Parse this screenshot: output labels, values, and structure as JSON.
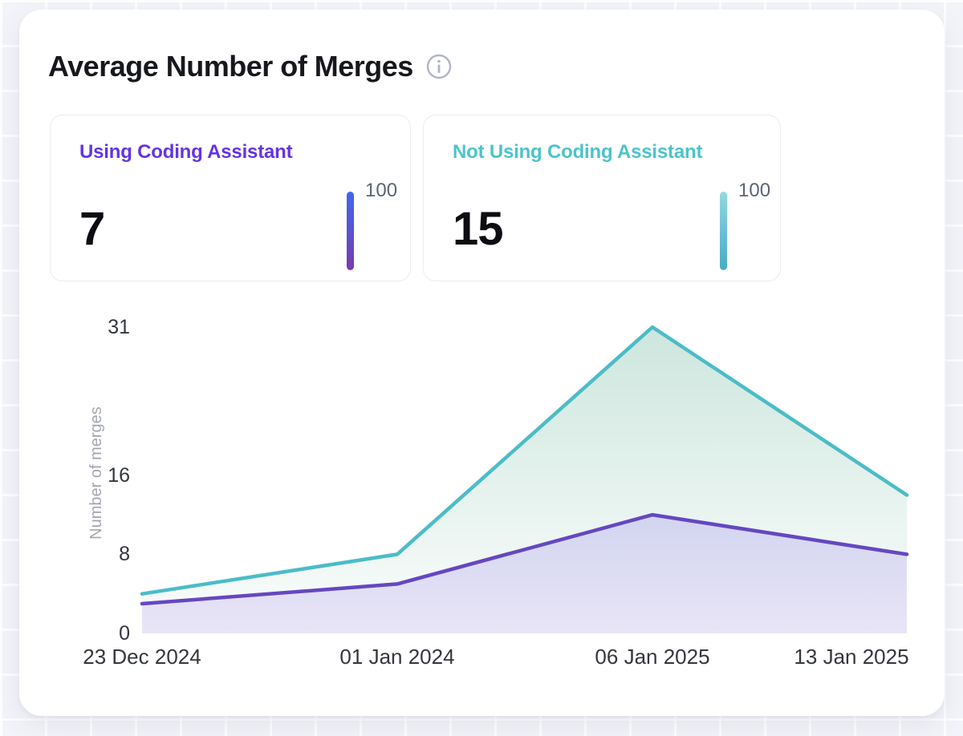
{
  "header": {
    "title": "Average Number of Merges"
  },
  "stats": [
    {
      "label": "Using Coding Assistant",
      "value": "7",
      "gauge_label": "100",
      "accent_color": "#6434e4",
      "gauge_gradient_top": "#4168ec",
      "gauge_gradient_bottom": "#7e38ae"
    },
    {
      "label": "Not Using Coding Assistant",
      "value": "15",
      "gauge_label": "100",
      "accent_color": "#4cc3cb",
      "gauge_gradient_top": "#93dade",
      "gauge_gradient_bottom": "#46aec2"
    }
  ],
  "chart_data": {
    "type": "area",
    "x": [
      "23 Dec 2024",
      "01 Jan 2024",
      "06 Jan 2025",
      "13 Jan 2025"
    ],
    "series": [
      {
        "name": "Not Using Coding Assistant",
        "values": [
          4,
          8,
          31,
          14
        ],
        "line_color": "#4bbcc8",
        "fill_top": "#cde6dd",
        "fill_bottom": "#fbfdfc"
      },
      {
        "name": "Using Coding Assistant",
        "values": [
          3,
          5,
          12,
          8
        ],
        "line_color": "#6547c0",
        "fill_top": "#d2d4f0",
        "fill_bottom": "#e9e5f7"
      }
    ],
    "title": "Average Number of Merges",
    "xlabel": "",
    "ylabel": "Number of merges",
    "ylim": [
      0,
      31
    ],
    "yticks": [
      0,
      8,
      16,
      31
    ],
    "grid": false,
    "legend": false
  }
}
